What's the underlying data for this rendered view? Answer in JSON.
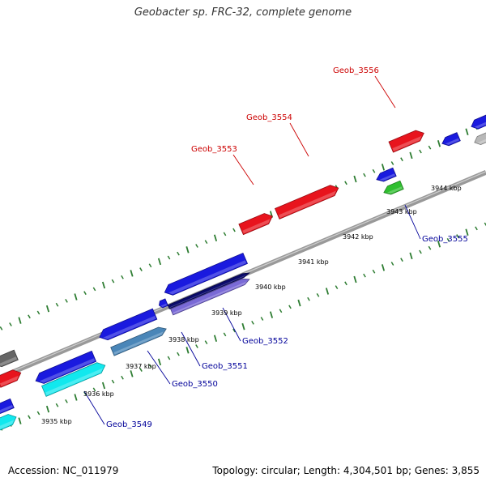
{
  "title": "Geobacter sp. FRC-32, complete genome",
  "accession_text": "Accession: NC_011979",
  "summary_text": "Topology: circular; Length: 4,304,501 bp; Genes: 3,855",
  "colors": {
    "backbone": "#8c8c8c",
    "tick": "#2e7d32",
    "forward_label": "#cc0000",
    "reverse_label": "#000099"
  },
  "tick_labels": [
    {
      "label": "3935 kbp"
    },
    {
      "label": "3936 kbp"
    },
    {
      "label": "3937 kbp"
    },
    {
      "label": "3938 kbp"
    },
    {
      "label": "3939 kbp"
    },
    {
      "label": "3940 kbp"
    },
    {
      "label": "3941 kbp"
    },
    {
      "label": "3942 kbp"
    },
    {
      "label": "3943 kbp"
    },
    {
      "label": "3944 kbp"
    }
  ],
  "gene_labels": [
    {
      "label": "Geob_3553",
      "strand": "forward"
    },
    {
      "label": "Geob_3554",
      "strand": "forward"
    },
    {
      "label": "Geob_3556",
      "strand": "forward"
    },
    {
      "label": "Geob_3555",
      "strand": "reverse"
    },
    {
      "label": "Geob_3552",
      "strand": "reverse"
    },
    {
      "label": "Geob_3551",
      "strand": "reverse"
    },
    {
      "label": "Geob_3550",
      "strand": "reverse"
    },
    {
      "label": "Geob_3549",
      "strand": "reverse"
    }
  ],
  "features": [
    {
      "color": "#e8141d"
    },
    {
      "color": "#e8141d"
    },
    {
      "color": "#e8141d"
    },
    {
      "color": "#1a1adf"
    },
    {
      "color": "#1a1adf"
    },
    {
      "color": "#1a1adf"
    },
    {
      "color": "#1a1adf"
    },
    {
      "color": "#1a1adf"
    },
    {
      "color": "#1a1adf"
    },
    {
      "color": "#1a1adf"
    },
    {
      "color": "#1a1adf"
    },
    {
      "color": "#b8b8b8"
    },
    {
      "color": "#666666"
    },
    {
      "color": "#e8141d"
    },
    {
      "color": "#2fbf2f"
    },
    {
      "color": "#0b0b6b"
    },
    {
      "color": "#7a6ad6"
    },
    {
      "color": "#4a86b8"
    },
    {
      "color": "#11e8ee"
    },
    {
      "color": "#11e8ee"
    }
  ]
}
